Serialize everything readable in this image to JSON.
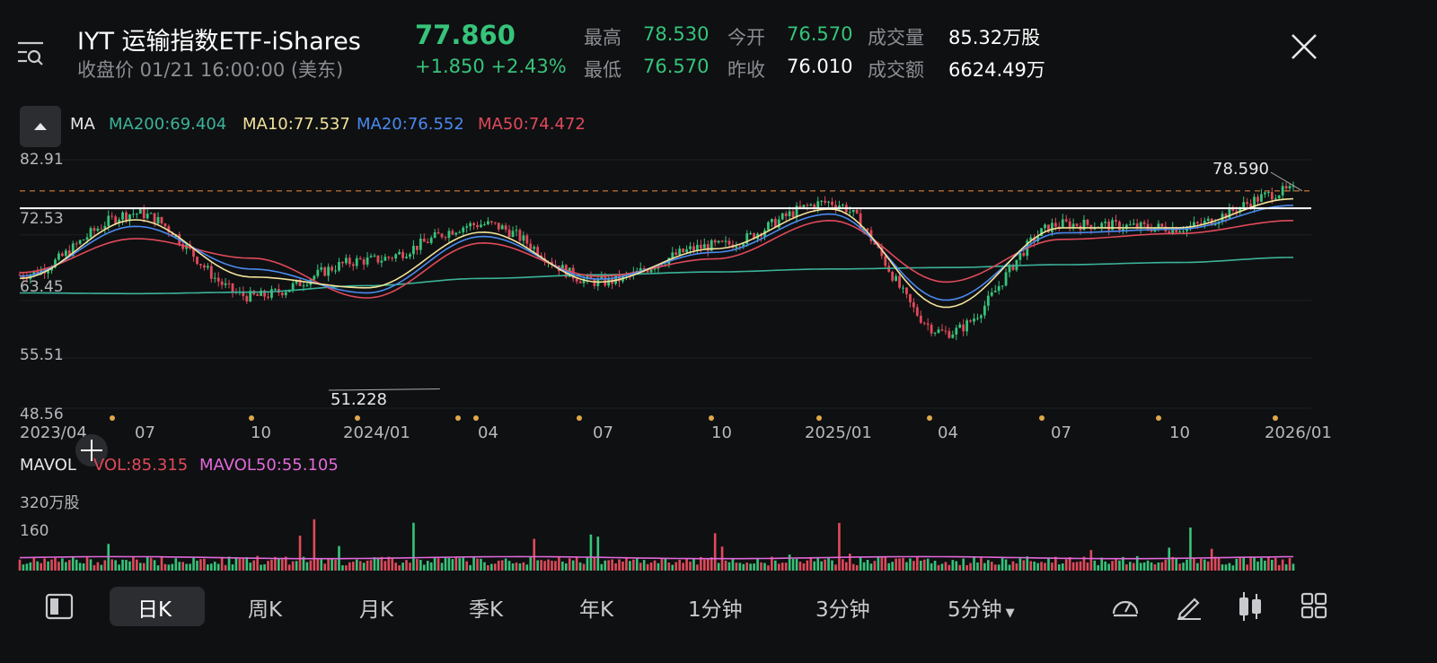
{
  "header": {
    "title": "IYT  运输指数ETF-iShares",
    "price": "77.860",
    "status": "收盘价 01/21 16:00:00 (美东)",
    "change": "+1.850 +2.43%",
    "stats": [
      {
        "label": "最高",
        "value": "78.530",
        "color": "#36c47a"
      },
      {
        "label": "今开",
        "value": "76.570",
        "color": "#36c47a"
      },
      {
        "label": "成交量",
        "value": "85.32万股",
        "color": "#ffffff"
      },
      {
        "label": "最低",
        "value": "76.570",
        "color": "#36c47a"
      },
      {
        "label": "昨收",
        "value": "76.010",
        "color": "#ffffff"
      },
      {
        "label": "成交额",
        "value": "6624.49万",
        "color": "#ffffff"
      }
    ]
  },
  "ma_bar": {
    "label": "MA",
    "ma200": "MA200:69.404",
    "ma10": "MA10:77.537",
    "ma20": "MA20:76.552",
    "ma50": "MA50:74.472",
    "colors": {
      "ma200": "#3bb39a",
      "ma10": "#f3e39a",
      "ma20": "#4a8af0",
      "ma50": "#e04a5a"
    }
  },
  "price_axis": [
    "82.91",
    "72.53",
    "63.45",
    "55.51",
    "48.56"
  ],
  "annotations": {
    "high": "78.590",
    "low": "51.228"
  },
  "date_axis": [
    "2023/04",
    "07",
    "10",
    "2024/01",
    "04",
    "07",
    "10",
    "2025/01",
    "04",
    "07",
    "10",
    "2026/01"
  ],
  "vol_bar": {
    "label": "MAVOL",
    "vol": "VOL:85.315",
    "mavol50": "MAVOL50:55.105",
    "colors": {
      "vol": "#e04a5a",
      "mavol50": "#e06ad8"
    }
  },
  "vol_axis": [
    "320万股",
    "160"
  ],
  "toolbar": {
    "items": [
      "日K",
      "周K",
      "月K",
      "季K",
      "年K",
      "1分钟",
      "3分钟",
      "5分钟"
    ],
    "active": "日K"
  },
  "icons": [
    "menu-search-icon",
    "close-icon",
    "collapse-arrow-icon",
    "crosshair-icon",
    "sidebar-toggle-icon",
    "gauge-icon",
    "pencil-icon",
    "candlestick-icon",
    "grid-icon"
  ],
  "chart_data": {
    "type": "candlestick",
    "title": "IYT 运输指数ETF-iShares",
    "x_range": [
      "2023/04",
      "2026/01"
    ],
    "ylim": [
      48.56,
      82.91
    ],
    "series": [
      {
        "name": "MA200",
        "values": [
          64.5,
          64.4,
          64.6,
          65.5,
          66.5,
          67.0,
          67.4,
          67.8,
          68.0,
          68.4,
          68.7,
          69.4
        ]
      },
      {
        "name": "MA50",
        "values": [
          67.3,
          72.0,
          69.3,
          63.8,
          71.4,
          66.8,
          69.2,
          74.5,
          66.0,
          71.9,
          72.7,
          74.5
        ]
      },
      {
        "name": "MA20",
        "values": [
          66.8,
          73.7,
          67.8,
          64.5,
          72.3,
          66.4,
          70.1,
          75.4,
          63.5,
          72.8,
          73.3,
          76.6
        ]
      },
      {
        "name": "MA10",
        "values": [
          66.5,
          74.6,
          66.7,
          65.2,
          72.9,
          66.0,
          70.6,
          76.1,
          62.5,
          73.5,
          73.5,
          77.5
        ]
      }
    ],
    "close_by_month_marker": [
      67.0,
      75.5,
      64.0,
      69.0,
      74.0,
      66.0,
      71.0,
      77.0,
      59.0,
      74.0,
      73.5,
      78.6
    ],
    "high_mark": 78.59,
    "low_mark": 51.228,
    "resistance_line": 76.2,
    "volume": {
      "last": 85.315,
      "mavol50": 55.105,
      "ylim": [
        0,
        320
      ]
    }
  }
}
